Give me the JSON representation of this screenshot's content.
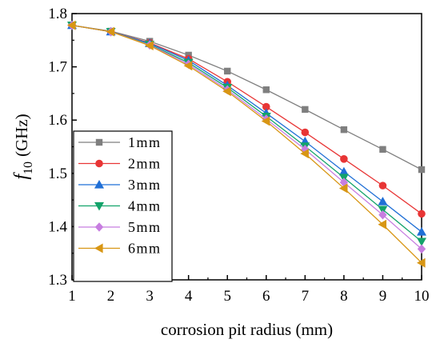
{
  "chart_data": {
    "type": "line",
    "title": "",
    "xlabel": "corrosion pit radius (mm)",
    "ylabel_main": "f",
    "ylabel_sub": "10",
    "ylabel_unit": "(GHz)",
    "xlim": [
      1,
      10
    ],
    "ylim": [
      1.3,
      1.8
    ],
    "xticks": [
      "1",
      "2",
      "3",
      "4",
      "5",
      "6",
      "7",
      "8",
      "9",
      "10"
    ],
    "yticks": [
      "1.3",
      "1.4",
      "1.5",
      "1.6",
      "1.7",
      "1.8"
    ],
    "grid": false,
    "legend_position": "bottom-left",
    "x": [
      1,
      2,
      3,
      4,
      5,
      6,
      7,
      8,
      9,
      10
    ],
    "series": [
      {
        "name": "1mm",
        "color": "#7f7f7f",
        "marker": "square",
        "values": [
          1.778,
          1.767,
          1.748,
          1.722,
          1.692,
          1.657,
          1.62,
          1.582,
          1.545,
          1.507
        ]
      },
      {
        "name": "2mm",
        "color": "#e83535",
        "marker": "circle",
        "values": [
          1.778,
          1.766,
          1.745,
          1.715,
          1.672,
          1.625,
          1.577,
          1.527,
          1.477,
          1.424
        ]
      },
      {
        "name": "3mm",
        "color": "#1f6fd6",
        "marker": "triangle-up",
        "values": [
          1.778,
          1.766,
          1.744,
          1.712,
          1.665,
          1.613,
          1.56,
          1.503,
          1.447,
          1.39
        ]
      },
      {
        "name": "4mm",
        "color": "#13a36a",
        "marker": "triangle-down",
        "values": [
          1.778,
          1.766,
          1.742,
          1.708,
          1.661,
          1.607,
          1.551,
          1.492,
          1.432,
          1.372
        ]
      },
      {
        "name": "5mm",
        "color": "#c77de0",
        "marker": "diamond",
        "values": [
          1.778,
          1.766,
          1.741,
          1.705,
          1.657,
          1.602,
          1.545,
          1.483,
          1.422,
          1.358
        ]
      },
      {
        "name": "6mm",
        "color": "#d89614",
        "marker": "triangle-left",
        "values": [
          1.778,
          1.766,
          1.74,
          1.702,
          1.654,
          1.598,
          1.537,
          1.472,
          1.404,
          1.332
        ]
      }
    ]
  }
}
